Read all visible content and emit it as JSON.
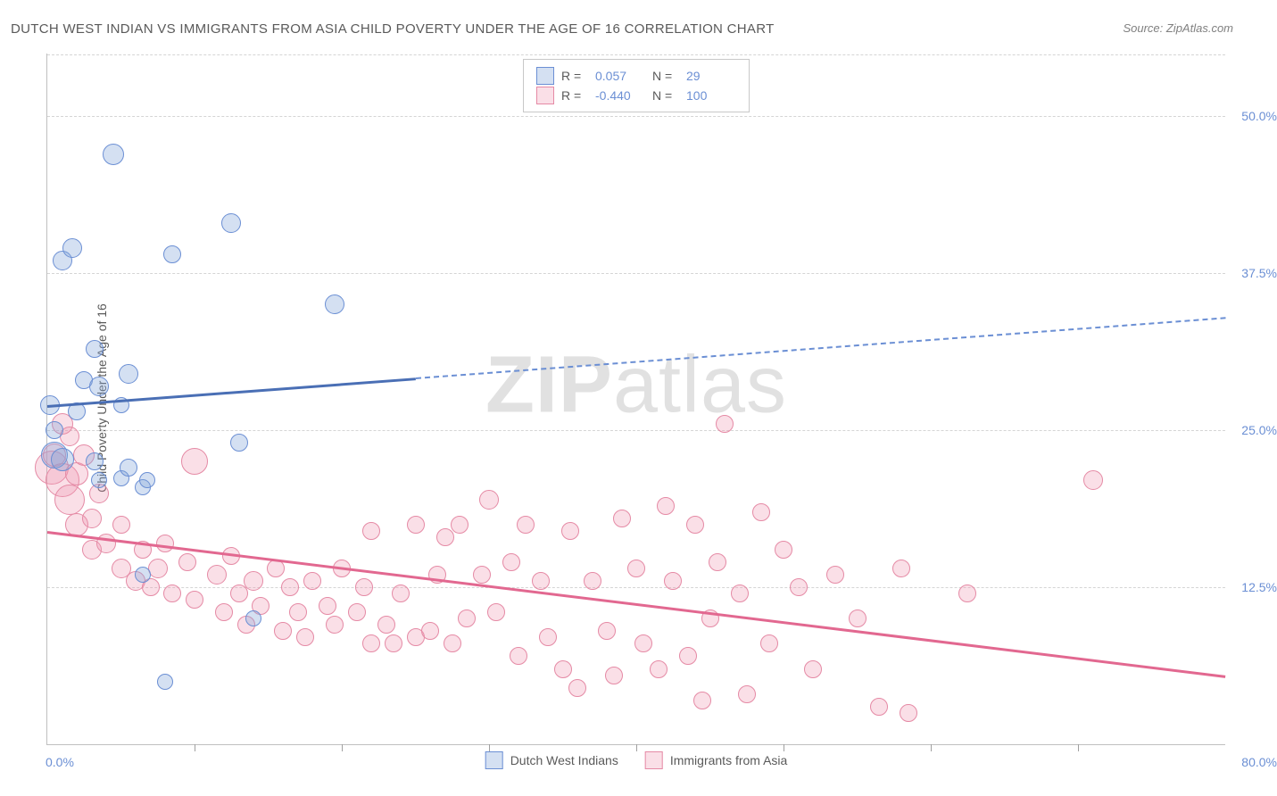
{
  "title": "DUTCH WEST INDIAN VS IMMIGRANTS FROM ASIA CHILD POVERTY UNDER THE AGE OF 16 CORRELATION CHART",
  "source": "Source: ZipAtlas.com",
  "ylabel": "Child Poverty Under the Age of 16",
  "watermark_a": "ZIP",
  "watermark_b": "atlas",
  "chart": {
    "type": "scatter",
    "xlim": [
      0,
      80
    ],
    "ylim": [
      0,
      55
    ],
    "x_origin_label": "0.0%",
    "x_max_label": "80.0%",
    "yticks": [
      12.5,
      25.0,
      37.5,
      50.0
    ],
    "ytick_labels": [
      "12.5%",
      "25.0%",
      "37.5%",
      "50.0%"
    ],
    "xticks": [
      10,
      20,
      30,
      40,
      50,
      60,
      70
    ],
    "background_color": "#ffffff",
    "grid_color": "#d5d5d5"
  },
  "series": {
    "blue": {
      "label": "Dutch West Indians",
      "color_fill": "rgba(132,166,219,0.35)",
      "color_stroke": "#6b8fd4",
      "R": "0.057",
      "N": "29",
      "trend": {
        "y_at_x0": 27.0,
        "y_at_x80": 34.0,
        "solid_until_x": 25
      },
      "points": [
        {
          "x": 0.2,
          "y": 27.0,
          "r": 10
        },
        {
          "x": 0.5,
          "y": 25.0,
          "r": 9
        },
        {
          "x": 0.5,
          "y": 23.0,
          "r": 14
        },
        {
          "x": 1.0,
          "y": 22.7,
          "r": 12
        },
        {
          "x": 1.0,
          "y": 38.5,
          "r": 10
        },
        {
          "x": 1.7,
          "y": 39.5,
          "r": 10
        },
        {
          "x": 2.0,
          "y": 26.5,
          "r": 9
        },
        {
          "x": 2.5,
          "y": 29.0,
          "r": 9
        },
        {
          "x": 3.2,
          "y": 31.5,
          "r": 9
        },
        {
          "x": 3.2,
          "y": 22.5,
          "r": 9
        },
        {
          "x": 3.5,
          "y": 28.5,
          "r": 10
        },
        {
          "x": 3.5,
          "y": 21.0,
          "r": 8
        },
        {
          "x": 4.5,
          "y": 47.0,
          "r": 11
        },
        {
          "x": 5.0,
          "y": 21.2,
          "r": 8
        },
        {
          "x": 5.0,
          "y": 27.0,
          "r": 8
        },
        {
          "x": 5.5,
          "y": 29.5,
          "r": 10
        },
        {
          "x": 5.5,
          "y": 22.0,
          "r": 9
        },
        {
          "x": 6.5,
          "y": 20.5,
          "r": 8
        },
        {
          "x": 6.5,
          "y": 13.5,
          "r": 8
        },
        {
          "x": 6.8,
          "y": 21.0,
          "r": 8
        },
        {
          "x": 8.0,
          "y": 5.0,
          "r": 8
        },
        {
          "x": 8.5,
          "y": 39.0,
          "r": 9
        },
        {
          "x": 12.5,
          "y": 41.5,
          "r": 10
        },
        {
          "x": 13.0,
          "y": 24.0,
          "r": 9
        },
        {
          "x": 14.0,
          "y": 10.0,
          "r": 8
        },
        {
          "x": 19.5,
          "y": 35.0,
          "r": 10
        }
      ]
    },
    "pink": {
      "label": "Immigrants from Asia",
      "color_fill": "rgba(240,150,175,0.30)",
      "color_stroke": "#e58aa5",
      "R": "-0.440",
      "N": "100",
      "trend": {
        "y_at_x0": 17.0,
        "y_at_x80": 5.5,
        "solid_until_x": 80
      },
      "points": [
        {
          "x": 0.3,
          "y": 22.0,
          "r": 18
        },
        {
          "x": 0.5,
          "y": 23.0,
          "r": 12
        },
        {
          "x": 1.0,
          "y": 25.5,
          "r": 11
        },
        {
          "x": 1.0,
          "y": 21.0,
          "r": 18
        },
        {
          "x": 1.5,
          "y": 24.5,
          "r": 10
        },
        {
          "x": 1.5,
          "y": 19.5,
          "r": 16
        },
        {
          "x": 2.0,
          "y": 21.5,
          "r": 12
        },
        {
          "x": 2.0,
          "y": 17.5,
          "r": 12
        },
        {
          "x": 2.5,
          "y": 23.0,
          "r": 11
        },
        {
          "x": 3.0,
          "y": 18.0,
          "r": 10
        },
        {
          "x": 3.0,
          "y": 15.5,
          "r": 10
        },
        {
          "x": 3.5,
          "y": 20.0,
          "r": 10
        },
        {
          "x": 4.0,
          "y": 16.0,
          "r": 10
        },
        {
          "x": 5.0,
          "y": 14.0,
          "r": 10
        },
        {
          "x": 5.0,
          "y": 17.5,
          "r": 9
        },
        {
          "x": 6.0,
          "y": 13.0,
          "r": 10
        },
        {
          "x": 6.5,
          "y": 15.5,
          "r": 9
        },
        {
          "x": 7.0,
          "y": 12.5,
          "r": 9
        },
        {
          "x": 7.5,
          "y": 14.0,
          "r": 10
        },
        {
          "x": 8.0,
          "y": 16.0,
          "r": 9
        },
        {
          "x": 8.5,
          "y": 12.0,
          "r": 9
        },
        {
          "x": 9.5,
          "y": 14.5,
          "r": 9
        },
        {
          "x": 10.0,
          "y": 11.5,
          "r": 9
        },
        {
          "x": 10.0,
          "y": 22.5,
          "r": 14
        },
        {
          "x": 11.5,
          "y": 13.5,
          "r": 10
        },
        {
          "x": 12.0,
          "y": 10.5,
          "r": 9
        },
        {
          "x": 12.5,
          "y": 15.0,
          "r": 9
        },
        {
          "x": 13.0,
          "y": 12.0,
          "r": 9
        },
        {
          "x": 13.5,
          "y": 9.5,
          "r": 9
        },
        {
          "x": 14.0,
          "y": 13.0,
          "r": 10
        },
        {
          "x": 14.5,
          "y": 11.0,
          "r": 9
        },
        {
          "x": 15.5,
          "y": 14.0,
          "r": 9
        },
        {
          "x": 16.0,
          "y": 9.0,
          "r": 9
        },
        {
          "x": 16.5,
          "y": 12.5,
          "r": 9
        },
        {
          "x": 17.0,
          "y": 10.5,
          "r": 9
        },
        {
          "x": 17.5,
          "y": 8.5,
          "r": 9
        },
        {
          "x": 18.0,
          "y": 13.0,
          "r": 9
        },
        {
          "x": 19.0,
          "y": 11.0,
          "r": 9
        },
        {
          "x": 19.5,
          "y": 9.5,
          "r": 9
        },
        {
          "x": 20.0,
          "y": 14.0,
          "r": 9
        },
        {
          "x": 21.0,
          "y": 10.5,
          "r": 9
        },
        {
          "x": 21.5,
          "y": 12.5,
          "r": 9
        },
        {
          "x": 22.0,
          "y": 8.0,
          "r": 9
        },
        {
          "x": 22.0,
          "y": 17.0,
          "r": 9
        },
        {
          "x": 23.0,
          "y": 9.5,
          "r": 9
        },
        {
          "x": 23.5,
          "y": 8.0,
          "r": 9
        },
        {
          "x": 24.0,
          "y": 12.0,
          "r": 9
        },
        {
          "x": 25.0,
          "y": 17.5,
          "r": 9
        },
        {
          "x": 25.0,
          "y": 8.5,
          "r": 9
        },
        {
          "x": 26.0,
          "y": 9.0,
          "r": 9
        },
        {
          "x": 26.5,
          "y": 13.5,
          "r": 9
        },
        {
          "x": 27.0,
          "y": 16.5,
          "r": 9
        },
        {
          "x": 27.5,
          "y": 8.0,
          "r": 9
        },
        {
          "x": 28.0,
          "y": 17.5,
          "r": 9
        },
        {
          "x": 28.5,
          "y": 10.0,
          "r": 9
        },
        {
          "x": 29.5,
          "y": 13.5,
          "r": 9
        },
        {
          "x": 30.0,
          "y": 19.5,
          "r": 10
        },
        {
          "x": 30.5,
          "y": 10.5,
          "r": 9
        },
        {
          "x": 31.5,
          "y": 14.5,
          "r": 9
        },
        {
          "x": 32.0,
          "y": 7.0,
          "r": 9
        },
        {
          "x": 32.5,
          "y": 17.5,
          "r": 9
        },
        {
          "x": 33.5,
          "y": 13.0,
          "r": 9
        },
        {
          "x": 34.0,
          "y": 8.5,
          "r": 9
        },
        {
          "x": 35.0,
          "y": 6.0,
          "r": 9
        },
        {
          "x": 35.5,
          "y": 17.0,
          "r": 9
        },
        {
          "x": 36.0,
          "y": 4.5,
          "r": 9
        },
        {
          "x": 37.0,
          "y": 13.0,
          "r": 9
        },
        {
          "x": 38.0,
          "y": 9.0,
          "r": 9
        },
        {
          "x": 38.5,
          "y": 5.5,
          "r": 9
        },
        {
          "x": 39.0,
          "y": 18.0,
          "r": 9
        },
        {
          "x": 40.0,
          "y": 14.0,
          "r": 9
        },
        {
          "x": 40.5,
          "y": 8.0,
          "r": 9
        },
        {
          "x": 41.5,
          "y": 6.0,
          "r": 9
        },
        {
          "x": 42.0,
          "y": 19.0,
          "r": 9
        },
        {
          "x": 42.5,
          "y": 13.0,
          "r": 9
        },
        {
          "x": 43.5,
          "y": 7.0,
          "r": 9
        },
        {
          "x": 44.0,
          "y": 17.5,
          "r": 9
        },
        {
          "x": 44.5,
          "y": 3.5,
          "r": 9
        },
        {
          "x": 45.0,
          "y": 10.0,
          "r": 9
        },
        {
          "x": 45.5,
          "y": 14.5,
          "r": 9
        },
        {
          "x": 46.0,
          "y": 25.5,
          "r": 9
        },
        {
          "x": 47.0,
          "y": 12.0,
          "r": 9
        },
        {
          "x": 47.5,
          "y": 4.0,
          "r": 9
        },
        {
          "x": 48.5,
          "y": 18.5,
          "r": 9
        },
        {
          "x": 49.0,
          "y": 8.0,
          "r": 9
        },
        {
          "x": 50.0,
          "y": 15.5,
          "r": 9
        },
        {
          "x": 51.0,
          "y": 12.5,
          "r": 9
        },
        {
          "x": 52.0,
          "y": 6.0,
          "r": 9
        },
        {
          "x": 53.5,
          "y": 13.5,
          "r": 9
        },
        {
          "x": 55.0,
          "y": 10.0,
          "r": 9
        },
        {
          "x": 56.5,
          "y": 3.0,
          "r": 9
        },
        {
          "x": 58.0,
          "y": 14.0,
          "r": 9
        },
        {
          "x": 58.5,
          "y": 2.5,
          "r": 9
        },
        {
          "x": 62.5,
          "y": 12.0,
          "r": 9
        },
        {
          "x": 71.0,
          "y": 21.0,
          "r": 10
        }
      ]
    }
  },
  "legend_bottom": {
    "a": "Dutch West Indians",
    "b": "Immigrants from Asia"
  }
}
